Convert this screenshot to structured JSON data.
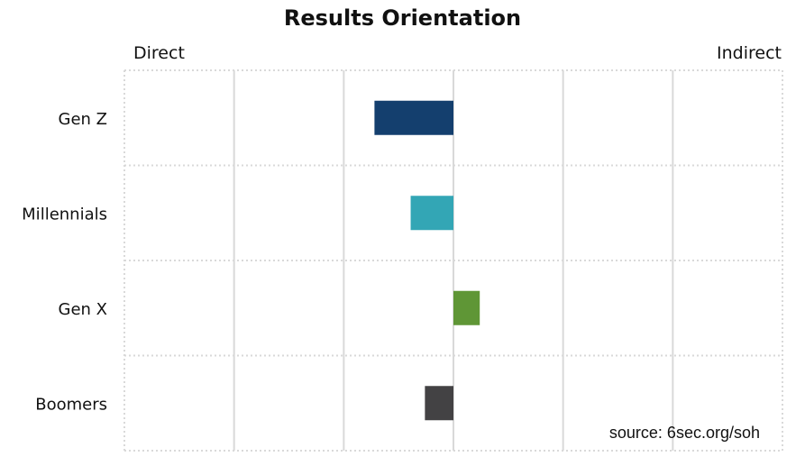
{
  "chart_data": {
    "type": "bar",
    "orientation": "horizontal",
    "title": "Results Orientation",
    "scale_left_label": "Direct",
    "scale_right_label": "Indirect",
    "categories": [
      "Gen Z",
      "Millennials",
      "Gen X",
      "Boomers"
    ],
    "values": [
      -0.72,
      -0.39,
      0.24,
      -0.26
    ],
    "xlim": [
      -3,
      3
    ],
    "colors": [
      "#143f6e",
      "#33a6b5",
      "#5f9636",
      "#434244"
    ],
    "grid": true
  },
  "source": "source: 6sec.org/soh"
}
